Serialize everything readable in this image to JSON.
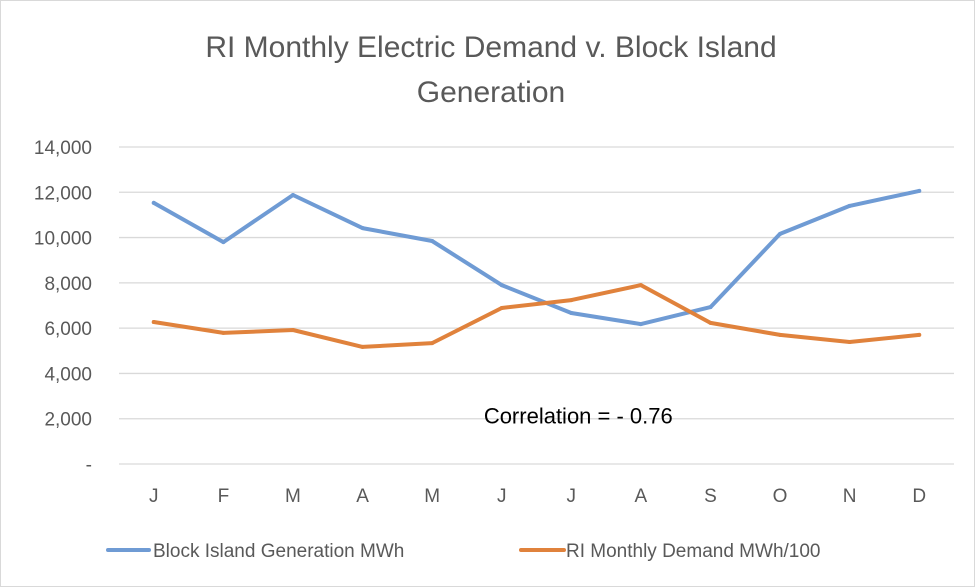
{
  "chart_data": {
    "type": "line",
    "title": "RI Monthly Electric Demand v. Block Island Generation",
    "title_lines": [
      "RI Monthly Electric Demand v. Block Island",
      "Generation"
    ],
    "xlabel": "",
    "ylabel": "",
    "categories": [
      "J",
      "F",
      "M",
      "A",
      "M",
      "J",
      "J",
      "A",
      "S",
      "O",
      "N",
      "D"
    ],
    "ylim": [
      0,
      14000
    ],
    "yticks": [
      0,
      2000,
      4000,
      6000,
      8000,
      10000,
      12000,
      14000
    ],
    "ytick_labels": [
      "-",
      "2,000",
      "4,000",
      "6,000",
      "8,000",
      "10,000",
      "12,000",
      "14,000"
    ],
    "grid": true,
    "legend_position": "bottom",
    "series": [
      {
        "name": "Block Island Generation MWh",
        "color": "#6f9bd4",
        "values": [
          11530,
          9800,
          11880,
          10420,
          9850,
          7900,
          6670,
          6180,
          6930,
          10160,
          11400,
          12060
        ]
      },
      {
        "name": "RI Monthly Demand MWh/100",
        "color": "#e0823c",
        "values": [
          6270,
          5790,
          5920,
          5170,
          5340,
          6890,
          7240,
          7900,
          6230,
          5700,
          5390,
          5700
        ]
      }
    ],
    "annotations": [
      {
        "text": "Correlation = - 0.76",
        "x_category_index": 6.5,
        "y": 2150
      }
    ]
  }
}
